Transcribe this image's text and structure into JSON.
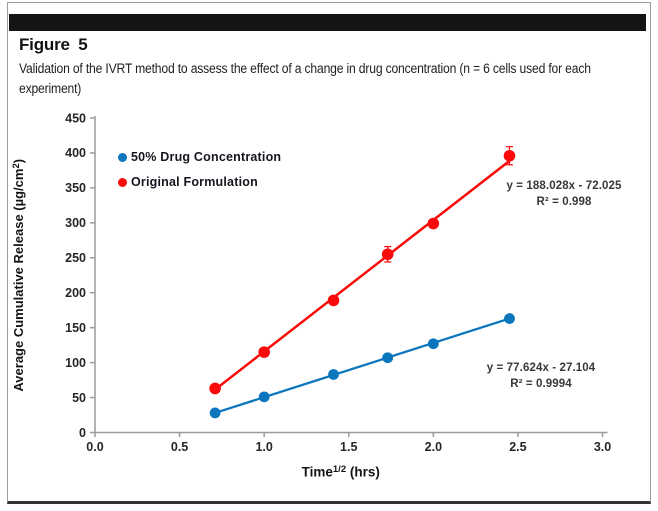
{
  "figure": {
    "label": "Figure 5",
    "caption": "Validation of the IVRT method to assess the effect of a change in drug concentration (n = 6 cells used for each experiment)"
  },
  "chart_data": {
    "type": "scatter",
    "marker": "circle",
    "grid": false,
    "legend_position": "top-left-inside",
    "x_values": [
      0.71,
      1.0,
      1.41,
      1.73,
      2.0,
      2.45
    ],
    "x_ticks": [
      0.0,
      0.5,
      1.0,
      1.5,
      2.0,
      2.5,
      3.0
    ],
    "y_ticks": [
      0,
      50,
      100,
      150,
      200,
      250,
      300,
      350,
      400,
      450
    ],
    "xlim": [
      0.0,
      3.0
    ],
    "ylim": [
      0,
      450
    ],
    "xlabel_parts": {
      "base": "Time",
      "sup": "1/2",
      "post": " (hrs)"
    },
    "ylabel_parts": {
      "pre": "Average Cumulative Release (µg/cm",
      "sup": "2",
      "post": ")"
    },
    "axis_color": "#9b9b9b",
    "tick_label_color": "#262626",
    "series": [
      {
        "name": "50% Drug Concentration",
        "color": "#0c76bd",
        "values": [
          28,
          51,
          83,
          107,
          127,
          163
        ],
        "error_bars": [
          2,
          2,
          3,
          3,
          3,
          4
        ],
        "slope": 77.624,
        "intercept": -27.104,
        "trend_x": [
          0.7,
          2.45
        ],
        "equation": "y = 77.624x - 27.104",
        "r_squared": "R² = 0.9994"
      },
      {
        "name": "Original Formulation",
        "color": "#fa0a0a",
        "values": [
          63,
          115,
          189,
          255,
          299,
          396
        ],
        "error_bars": [
          4,
          4,
          6,
          11,
          6,
          13
        ],
        "slope": 188.028,
        "intercept": -72.025,
        "trend_x": [
          0.69,
          2.45
        ],
        "equation": "y = 188.028x - 72.025",
        "r_squared": "R² = 0.998"
      }
    ]
  }
}
